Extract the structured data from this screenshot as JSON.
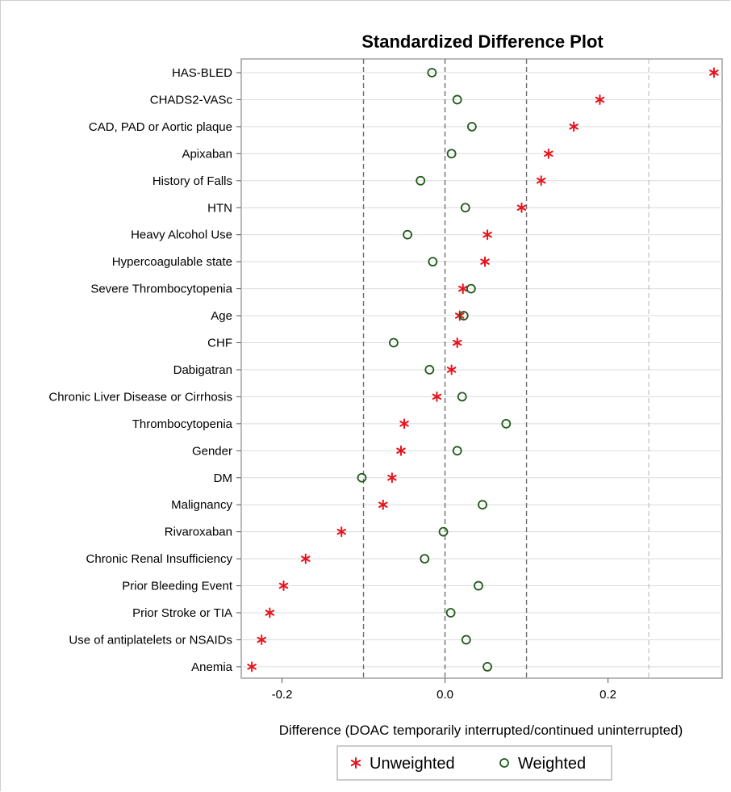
{
  "chart_data": {
    "type": "scatter",
    "title": "Standardized Difference Plot",
    "xlabel": "Difference (DOAC temporarily interrupted/continued uninterrupted)",
    "ylabel": "",
    "xlim": [
      -0.25,
      0.34
    ],
    "xticks": [
      -0.2,
      0.0,
      0.2
    ],
    "xtick_labels": [
      "-0.2",
      "0.0",
      "0.2"
    ],
    "reference_lines": [
      -0.1,
      0.0,
      0.1,
      0.25
    ],
    "horizontal_grid": true,
    "categories": [
      "HAS-BLED",
      "CHADS2-VASc",
      "CAD, PAD or Aortic plaque",
      "Apixaban",
      "History of Falls",
      "HTN",
      "Heavy Alcohol Use",
      "Hypercoagulable state",
      "Severe Thrombocytopenia",
      "Age",
      "CHF",
      "Dabigatran",
      "Chronic Liver Disease or Cirrhosis",
      "Thrombocytopenia",
      "Gender",
      "DM",
      "Malignancy",
      "Rivaroxaban",
      "Chronic Renal Insufficiency",
      "Prior Bleeding Event",
      "Prior Stroke or TIA",
      "Use of antiplatelets or NSAIDs",
      "Anemia"
    ],
    "series": [
      {
        "name": "Unweighted",
        "marker": "star",
        "color": "#e8121b",
        "values": [
          0.33,
          0.19,
          0.158,
          0.127,
          0.118,
          0.094,
          0.052,
          0.049,
          0.022,
          0.018,
          0.015,
          0.008,
          -0.01,
          -0.05,
          -0.054,
          -0.065,
          -0.076,
          -0.127,
          -0.171,
          -0.198,
          -0.215,
          -0.225,
          -0.237
        ]
      },
      {
        "name": "Weighted",
        "marker": "circle",
        "color": "#1f5a1a",
        "values": [
          -0.016,
          0.015,
          0.033,
          0.008,
          -0.03,
          0.025,
          -0.046,
          -0.015,
          0.032,
          0.023,
          -0.063,
          -0.019,
          0.021,
          0.075,
          0.015,
          -0.102,
          0.046,
          -0.002,
          -0.025,
          0.041,
          0.007,
          0.026,
          0.052
        ]
      }
    ],
    "legend": {
      "position": "bottom-center",
      "entries": [
        "Unweighted",
        "Weighted"
      ]
    }
  }
}
